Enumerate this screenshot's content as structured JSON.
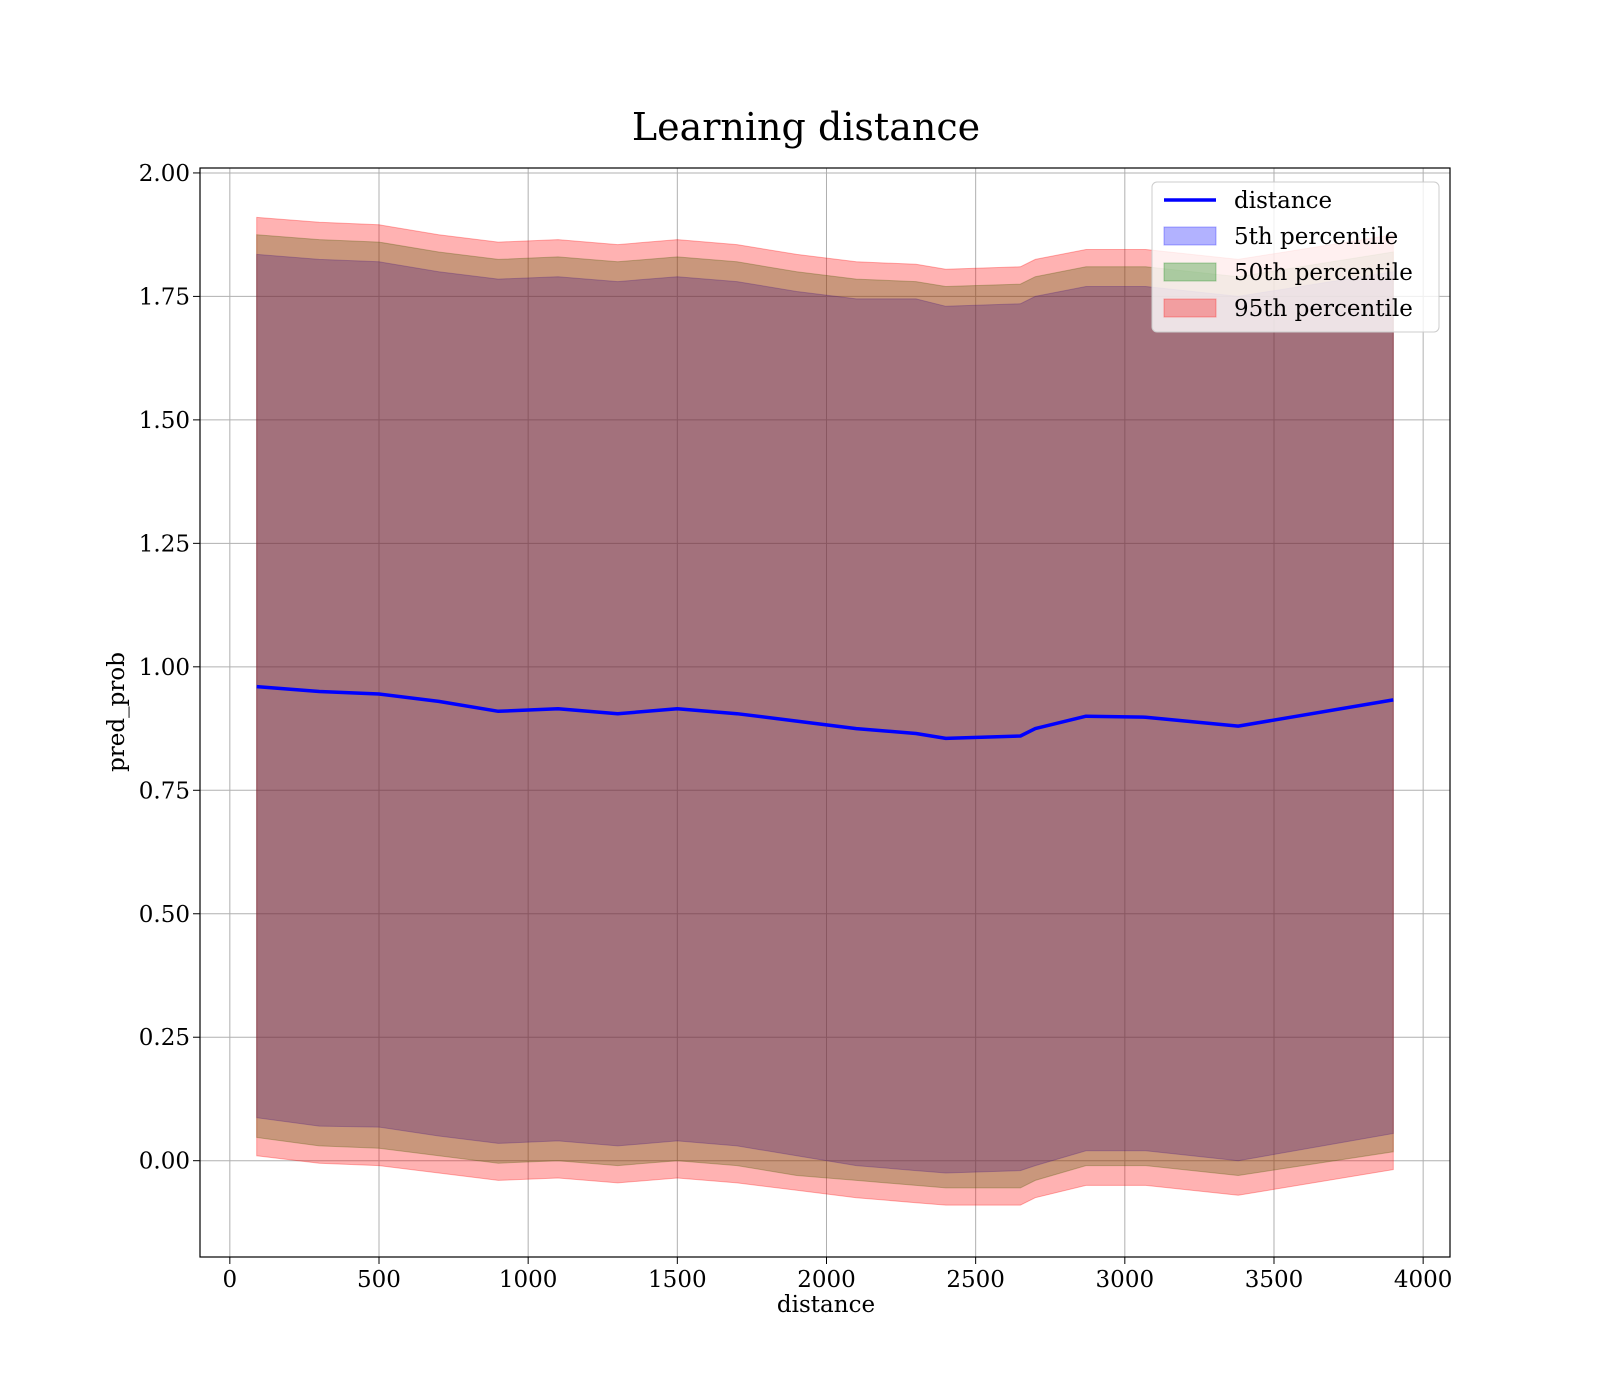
{
  "chart_data": {
    "type": "area",
    "title": "Learning distance",
    "xlabel": "distance",
    "ylabel": "pred_prob",
    "xlim": [
      -100,
      4090
    ],
    "ylim": [
      -0.195,
      2.01
    ],
    "xticks": [
      0,
      500,
      1000,
      1500,
      2000,
      2500,
      3000,
      3500,
      4000
    ],
    "yticks": [
      0.0,
      0.25,
      0.5,
      0.75,
      1.0,
      1.25,
      1.5,
      1.75,
      2.0
    ],
    "xtick_labels": [
      "0",
      "500",
      "1000",
      "1500",
      "2000",
      "2500",
      "3000",
      "3500",
      "4000"
    ],
    "ytick_labels": [
      "0.00",
      "0.25",
      "0.50",
      "0.75",
      "1.00",
      "1.25",
      "1.50",
      "1.75",
      "2.00"
    ],
    "grid": true,
    "legend_position": "top-right",
    "x": [
      90,
      300,
      500,
      700,
      900,
      1100,
      1300,
      1500,
      1700,
      1900,
      2100,
      2300,
      2400,
      2650,
      2700,
      2870,
      3070,
      3380,
      3900
    ],
    "series": [
      {
        "name": "distance",
        "kind": "line",
        "color": "#0000ff",
        "values": [
          0.96,
          0.95,
          0.945,
          0.93,
          0.91,
          0.915,
          0.905,
          0.915,
          0.905,
          0.89,
          0.875,
          0.865,
          0.855,
          0.86,
          0.875,
          0.9,
          0.898,
          0.88,
          0.933
        ]
      },
      {
        "name": "5th percentile",
        "kind": "band",
        "color": "#0000ff",
        "lower": [
          0.087,
          0.07,
          0.068,
          0.05,
          0.035,
          0.04,
          0.03,
          0.04,
          0.03,
          0.01,
          -0.01,
          -0.02,
          -0.025,
          -0.02,
          -0.01,
          0.02,
          0.02,
          0.0,
          0.055
        ],
        "upper": [
          1.835,
          1.825,
          1.82,
          1.8,
          1.785,
          1.79,
          1.78,
          1.79,
          1.78,
          1.76,
          1.745,
          1.745,
          1.73,
          1.735,
          1.75,
          1.77,
          1.77,
          1.75,
          1.8
        ]
      },
      {
        "name": "50th percentile",
        "kind": "band",
        "color": "#008000",
        "lower": [
          0.047,
          0.03,
          0.025,
          0.01,
          -0.005,
          0.0,
          -0.01,
          0.0,
          -0.01,
          -0.03,
          -0.04,
          -0.05,
          -0.055,
          -0.055,
          -0.04,
          -0.01,
          -0.01,
          -0.03,
          0.018
        ],
        "upper": [
          1.875,
          1.865,
          1.86,
          1.84,
          1.825,
          1.83,
          1.82,
          1.83,
          1.82,
          1.8,
          1.785,
          1.78,
          1.77,
          1.775,
          1.79,
          1.81,
          1.81,
          1.79,
          1.84
        ]
      },
      {
        "name": "95th percentile",
        "kind": "band",
        "color": "#ff0000",
        "lower": [
          0.01,
          -0.005,
          -0.01,
          -0.025,
          -0.04,
          -0.035,
          -0.045,
          -0.035,
          -0.045,
          -0.06,
          -0.075,
          -0.085,
          -0.09,
          -0.09,
          -0.075,
          -0.05,
          -0.05,
          -0.07,
          -0.018
        ],
        "upper": [
          1.91,
          1.9,
          1.895,
          1.875,
          1.86,
          1.865,
          1.855,
          1.865,
          1.855,
          1.835,
          1.82,
          1.815,
          1.805,
          1.81,
          1.825,
          1.845,
          1.845,
          1.825,
          1.875
        ]
      }
    ]
  }
}
